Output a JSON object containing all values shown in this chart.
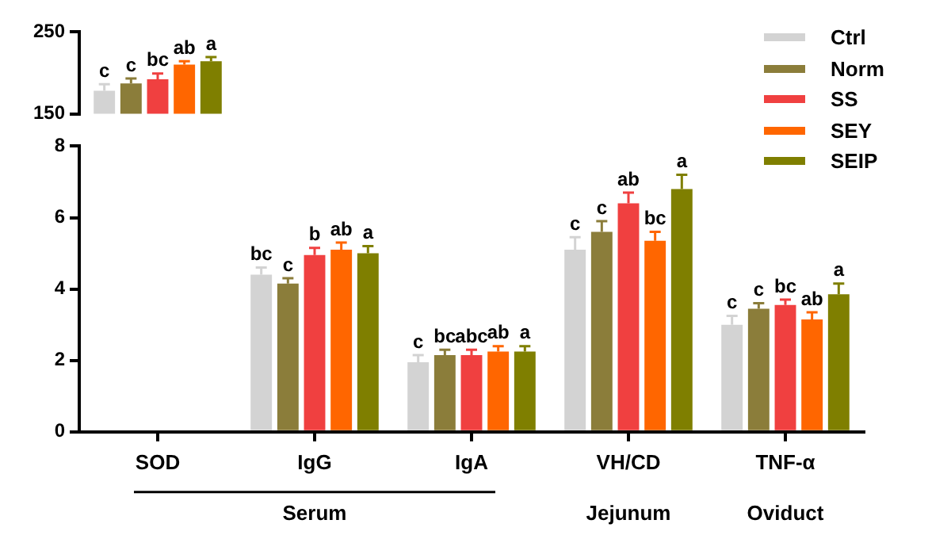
{
  "chart_data": [
    {
      "type": "bar",
      "categories": [
        null
      ],
      "ylim": [
        150,
        250
      ],
      "yticks": [
        150,
        250
      ],
      "tick_labels": "y",
      "series": [
        {
          "color": "#d3d3d3",
          "values": [
            178
          ],
          "errors": [
            8
          ],
          "value_labels": [
            "c"
          ]
        },
        {
          "color": "#8b7d3a",
          "values": [
            187
          ],
          "errors": [
            6
          ],
          "value_labels": [
            "c"
          ]
        },
        {
          "color": "#f04040",
          "values": [
            192
          ],
          "errors": [
            7
          ],
          "value_labels": [
            "bc"
          ]
        },
        {
          "color": "#ff6600",
          "values": [
            210
          ],
          "errors": [
            4
          ],
          "value_labels": [
            "ab"
          ]
        },
        {
          "color": "#7f7f00",
          "values": [
            214
          ],
          "errors": [
            5
          ],
          "value_labels": [
            "a"
          ]
        }
      ]
    },
    {
      "type": "bar",
      "categories": [
        "SOD",
        "IgG",
        "IgA",
        "VH/CD",
        "TNF-α"
      ],
      "ylim": [
        0,
        8
      ],
      "yticks": [
        0,
        2,
        4,
        6,
        8
      ],
      "legend": "top right",
      "annotations": [
        "Serum",
        "Jejunum",
        "Oviduct"
      ],
      "series": [
        {
          "name": "Ctrl",
          "color": "#d3d3d3",
          "values": [
            null,
            4.4,
            1.95,
            5.1,
            3.0
          ],
          "errors": [
            null,
            0.2,
            0.2,
            0.35,
            0.25
          ],
          "value_labels": [
            null,
            "bc",
            "c",
            "c",
            "c"
          ]
        },
        {
          "name": "Norm",
          "color": "#8b7d3a",
          "values": [
            null,
            4.15,
            2.15,
            5.6,
            3.45
          ],
          "errors": [
            null,
            0.15,
            0.15,
            0.3,
            0.15
          ],
          "value_labels": [
            null,
            "c",
            "bc",
            "c",
            "c"
          ]
        },
        {
          "name": "SS",
          "color": "#f04040",
          "values": [
            null,
            4.95,
            2.15,
            6.4,
            3.55
          ],
          "errors": [
            null,
            0.2,
            0.15,
            0.3,
            0.15
          ],
          "value_labels": [
            null,
            "b",
            "abc",
            "ab",
            "bc"
          ]
        },
        {
          "name": "SEY",
          "color": "#ff6600",
          "values": [
            null,
            5.1,
            2.25,
            5.35,
            3.15
          ],
          "errors": [
            null,
            0.2,
            0.15,
            0.25,
            0.2
          ],
          "value_labels": [
            null,
            "ab",
            "ab",
            "bc",
            "ab"
          ]
        },
        {
          "name": "SEIP",
          "color": "#7f7f00",
          "values": [
            null,
            5.0,
            2.25,
            6.8,
            3.85
          ],
          "errors": [
            null,
            0.2,
            0.15,
            0.4,
            0.3
          ],
          "value_labels": [
            null,
            "a",
            "a",
            "a",
            "a"
          ]
        }
      ]
    }
  ]
}
